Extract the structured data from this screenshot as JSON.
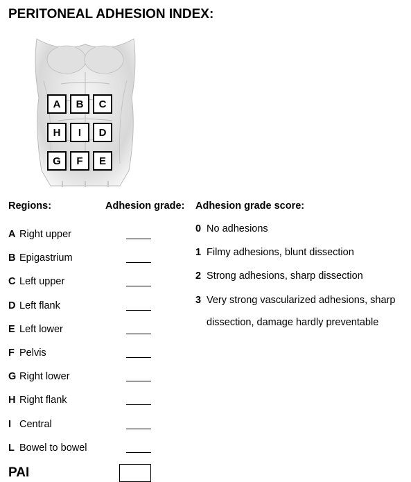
{
  "title": "PERITONEAL ADHESION INDEX:",
  "diagram": {
    "rows": [
      [
        "A",
        "B",
        "C"
      ],
      [
        "H",
        "I",
        "D"
      ],
      [
        "G",
        "F",
        "E"
      ]
    ],
    "box_border_color": "#000000",
    "box_fill_color": "#ffffff",
    "box_font_size": 15,
    "torso_shade_light": "#e8e8e8",
    "torso_shade_mid": "#c8c8c8",
    "torso_shade_dark": "#a8a8a8",
    "line_color": "#999999"
  },
  "headers": {
    "regions": "Regions:",
    "grade": "Adhesion grade:",
    "score": "Adhesion grade score:"
  },
  "regions": [
    {
      "letter": "A",
      "name": "Right upper"
    },
    {
      "letter": "B",
      "name": "Epigastrium"
    },
    {
      "letter": "C",
      "name": "Left upper"
    },
    {
      "letter": "D",
      "name": "Left flank"
    },
    {
      "letter": "E",
      "name": "Left lower"
    },
    {
      "letter": "F",
      "name": "Pelvis"
    },
    {
      "letter": "G",
      "name": "Right lower"
    },
    {
      "letter": "H",
      "name": "Right flank"
    },
    {
      "letter": "I",
      "name": "Central"
    },
    {
      "letter": "L",
      "name": "Bowel to bowel"
    }
  ],
  "scores": [
    {
      "num": "0",
      "text": "No adhesions"
    },
    {
      "num": "1",
      "text": "Filmy adhesions, blunt dissection"
    },
    {
      "num": "2",
      "text": "Strong adhesions, sharp dissection"
    },
    {
      "num": "3",
      "text": "Very strong vascularized adhesions, sharp"
    }
  ],
  "score_cont": "dissection, damage hardly preventable",
  "pai_label": "PAI",
  "style": {
    "background": "#ffffff",
    "text_color": "#000000",
    "title_fontsize": 19,
    "body_fontsize": 14.5,
    "font_family": "Arial"
  }
}
